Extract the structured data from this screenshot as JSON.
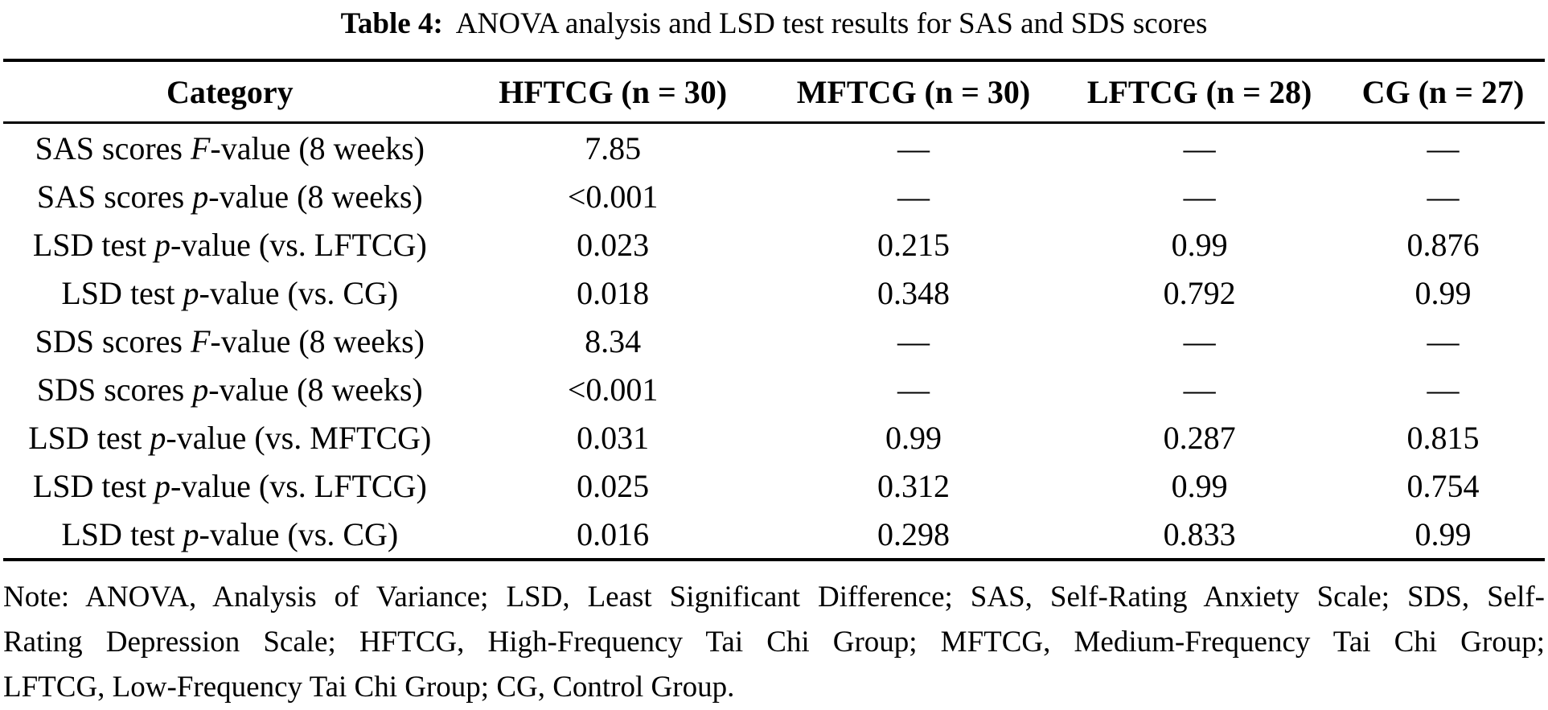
{
  "title": {
    "label": "Table 4:",
    "text": "ANOVA analysis and LSD test results for SAS and SDS scores"
  },
  "colors": {
    "background": "#ffffff",
    "text": "#000000",
    "rule": "#000000"
  },
  "table": {
    "headers": [
      "Category",
      "HFTCG (n = 30)",
      "MFTCG (n = 30)",
      "LFTCG (n = 28)",
      "CG (n = 27)"
    ],
    "rows": [
      {
        "category": {
          "pre": "SAS scores ",
          "italic": "F",
          "post": "-value (8 weeks)"
        },
        "values": [
          "7.85",
          "—",
          "—",
          "—"
        ]
      },
      {
        "category": {
          "pre": "SAS scores ",
          "italic": "p",
          "post": "-value (8 weeks)"
        },
        "values": [
          "<0.001",
          "—",
          "—",
          "—"
        ]
      },
      {
        "category": {
          "pre": "LSD test ",
          "italic": "p",
          "post": "-value (vs. LFTCG)"
        },
        "values": [
          "0.023",
          "0.215",
          "0.99",
          "0.876"
        ]
      },
      {
        "category": {
          "pre": "LSD test ",
          "italic": "p",
          "post": "-value (vs. CG)"
        },
        "values": [
          "0.018",
          "0.348",
          "0.792",
          "0.99"
        ]
      },
      {
        "category": {
          "pre": "SDS scores ",
          "italic": "F",
          "post": "-value (8 weeks)"
        },
        "values": [
          "8.34",
          "—",
          "—",
          "—"
        ]
      },
      {
        "category": {
          "pre": "SDS scores ",
          "italic": "p",
          "post": "-value (8 weeks)"
        },
        "values": [
          "<0.001",
          "—",
          "—",
          "—"
        ]
      },
      {
        "category": {
          "pre": "LSD test ",
          "italic": "p",
          "post": "-value (vs. MFTCG)"
        },
        "values": [
          "0.031",
          "0.99",
          "0.287",
          "0.815"
        ]
      },
      {
        "category": {
          "pre": "LSD test ",
          "italic": "p",
          "post": "-value (vs. LFTCG)"
        },
        "values": [
          "0.025",
          "0.312",
          "0.99",
          "0.754"
        ]
      },
      {
        "category": {
          "pre": "LSD test ",
          "italic": "p",
          "post": "-value (vs. CG)"
        },
        "values": [
          "0.016",
          "0.298",
          "0.833",
          "0.99"
        ]
      }
    ]
  },
  "note": {
    "line1": "Note: ANOVA, Analysis of Variance; LSD, Least Significant Difference; SAS, Self-Rating Anxiety Scale; SDS, Self-",
    "line2": "Rating Depression Scale; HFTCG, High-Frequency Tai Chi Group; MFTCG, Medium-Frequency Tai Chi Group;",
    "line3": "LFTCG, Low-Frequency Tai Chi Group; CG, Control Group."
  }
}
